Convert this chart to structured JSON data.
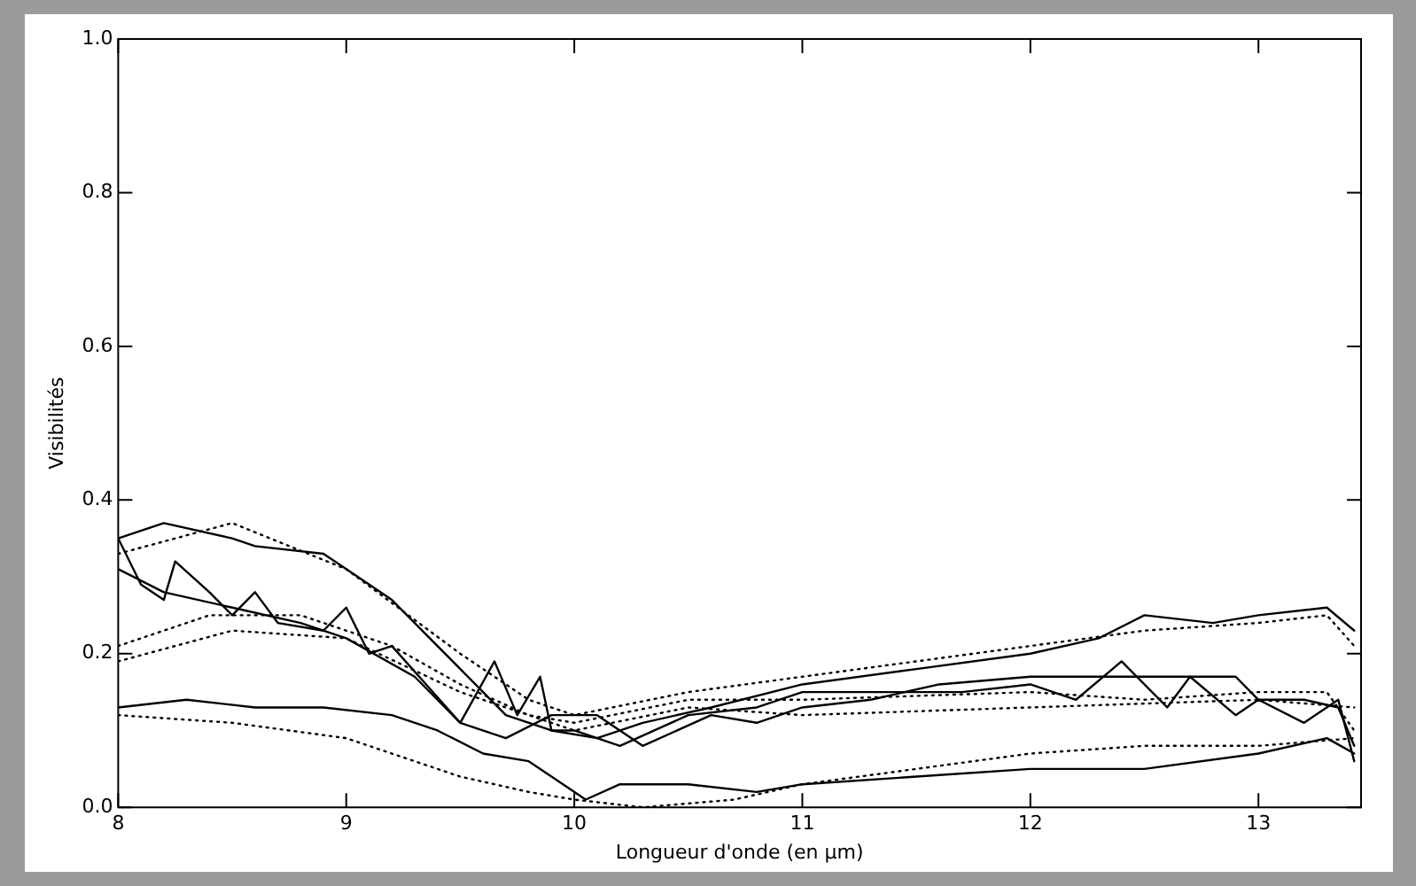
{
  "chart_data": {
    "type": "line",
    "xlabel": "Longueur d'onde (en µm)",
    "ylabel": "Visibilités",
    "xlim": [
      8,
      13.45
    ],
    "xticks": [
      8,
      9,
      10,
      11,
      12,
      13
    ],
    "ylim": [
      0,
      1
    ],
    "yticks": [
      {
        "value": 0,
        "label": "0.0"
      },
      {
        "value": 0.2,
        "label": "0.2"
      },
      {
        "value": 0.4,
        "label": "0.4"
      },
      {
        "value": 0.6,
        "label": "0.6"
      },
      {
        "value": 0.8,
        "label": "0.8"
      },
      {
        "value": 1,
        "label": "1.0"
      }
    ],
    "grid": false,
    "legend": false,
    "marker": "none",
    "series": [
      {
        "color": "#000000",
        "line_style": "solid",
        "x": [
          8,
          8.2,
          8.5,
          8.6,
          8.9,
          9.0,
          9.2,
          9.4,
          9.6,
          9.7,
          9.9,
          10.1,
          10.3,
          10.6,
          11,
          11.5,
          12,
          12.3,
          12.5,
          12.8,
          13.0,
          13.3,
          13.42
        ],
        "values": [
          0.35,
          0.37,
          0.35,
          0.34,
          0.33,
          0.31,
          0.27,
          0.21,
          0.15,
          0.12,
          0.1,
          0.09,
          0.11,
          0.13,
          0.16,
          0.18,
          0.2,
          0.22,
          0.25,
          0.24,
          0.25,
          0.26,
          0.23
        ]
      },
      {
        "color": "#000000",
        "line_style": "solid",
        "x": [
          8,
          8.1,
          8.2,
          8.25,
          8.4,
          8.5,
          8.6,
          8.7,
          8.9,
          9.0,
          9.1,
          9.2,
          9.35,
          9.5,
          9.65,
          9.75,
          9.85,
          9.9,
          10.0,
          10.2,
          10.5,
          10.8,
          11,
          11.4,
          11.7,
          12,
          12.2,
          12.4,
          12.6,
          12.7,
          12.9,
          13.0,
          13.2,
          13.35,
          13.42
        ],
        "values": [
          0.35,
          0.29,
          0.27,
          0.32,
          0.28,
          0.25,
          0.28,
          0.24,
          0.23,
          0.26,
          0.2,
          0.21,
          0.16,
          0.11,
          0.19,
          0.12,
          0.17,
          0.1,
          0.1,
          0.08,
          0.12,
          0.13,
          0.15,
          0.15,
          0.15,
          0.16,
          0.14,
          0.19,
          0.13,
          0.17,
          0.12,
          0.14,
          0.11,
          0.14,
          0.06
        ]
      },
      {
        "color": "#000000",
        "line_style": "solid",
        "x": [
          8,
          8.2,
          8.5,
          8.8,
          9.0,
          9.3,
          9.5,
          9.7,
          9.9,
          10.1,
          10.3,
          10.6,
          10.8,
          11,
          11.3,
          11.6,
          12,
          12.4,
          12.6,
          12.9,
          13.0,
          13.2,
          13.35,
          13.42
        ],
        "values": [
          0.31,
          0.28,
          0.26,
          0.24,
          0.22,
          0.17,
          0.11,
          0.09,
          0.12,
          0.12,
          0.08,
          0.12,
          0.11,
          0.13,
          0.14,
          0.16,
          0.17,
          0.17,
          0.17,
          0.17,
          0.14,
          0.14,
          0.13,
          0.08
        ]
      },
      {
        "color": "#000000",
        "line_style": "solid",
        "x": [
          8,
          8.3,
          8.6,
          8.9,
          9.2,
          9.4,
          9.6,
          9.8,
          9.9,
          10.05,
          10.2,
          10.5,
          10.8,
          11,
          11.5,
          12,
          12.5,
          13.0,
          13.3,
          13.42
        ],
        "values": [
          0.13,
          0.14,
          0.13,
          0.13,
          0.12,
          0.1,
          0.07,
          0.06,
          0.04,
          0.01,
          0.03,
          0.03,
          0.02,
          0.03,
          0.04,
          0.05,
          0.05,
          0.07,
          0.09,
          0.07
        ]
      },
      {
        "color": "#000000",
        "line_style": "dotted",
        "x": [
          8,
          8.5,
          9,
          9.5,
          9.8,
          10,
          10.5,
          11,
          11.5,
          12,
          12.5,
          13,
          13.3,
          13.42
        ],
        "values": [
          0.33,
          0.37,
          0.31,
          0.2,
          0.14,
          0.12,
          0.15,
          0.17,
          0.19,
          0.21,
          0.23,
          0.24,
          0.25,
          0.21
        ]
      },
      {
        "color": "#000000",
        "line_style": "dotted",
        "x": [
          8,
          8.4,
          8.8,
          9.2,
          9.5,
          9.8,
          10,
          10.5,
          11,
          12,
          12.5,
          13,
          13.3,
          13.42
        ],
        "values": [
          0.21,
          0.25,
          0.25,
          0.21,
          0.16,
          0.12,
          0.11,
          0.14,
          0.14,
          0.15,
          0.14,
          0.15,
          0.15,
          0.1
        ]
      },
      {
        "color": "#000000",
        "line_style": "dotted",
        "x": [
          8,
          8.5,
          9,
          9.5,
          10,
          10.5,
          11,
          12,
          13,
          13.42
        ],
        "values": [
          0.19,
          0.23,
          0.22,
          0.15,
          0.1,
          0.13,
          0.12,
          0.13,
          0.14,
          0.13
        ]
      },
      {
        "color": "#000000",
        "line_style": "dotted",
        "x": [
          8,
          8.5,
          9,
          9.5,
          9.8,
          10,
          10.3,
          10.7,
          11,
          11.5,
          12,
          12.5,
          13,
          13.42
        ],
        "values": [
          0.12,
          0.11,
          0.09,
          0.04,
          0.02,
          0.01,
          0,
          0.01,
          0.03,
          0.05,
          0.07,
          0.08,
          0.08,
          0.09
        ]
      }
    ]
  }
}
